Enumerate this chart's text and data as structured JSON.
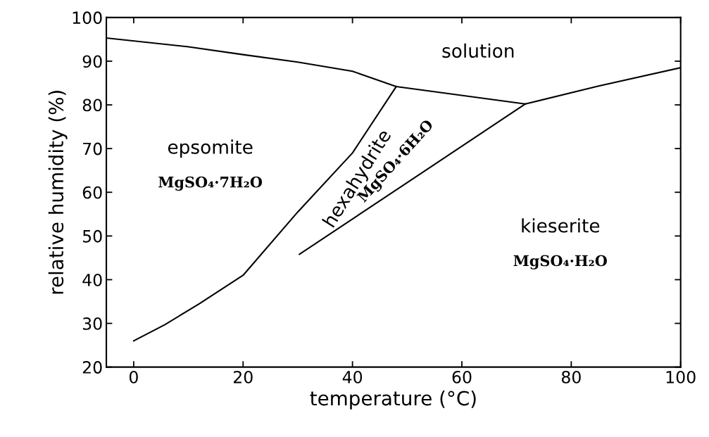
{
  "chart_data": {
    "type": "line",
    "xlabel": "temperature (°C)",
    "ylabel": "relative humidity (%)",
    "xlim": [
      -5,
      100
    ],
    "ylim": [
      20,
      100
    ],
    "xticks": [
      0,
      20,
      40,
      60,
      80,
      100
    ],
    "yticks": [
      20,
      30,
      40,
      50,
      60,
      70,
      80,
      90,
      100
    ],
    "grid": false,
    "marker": "none",
    "line_style": "solid",
    "series": [
      {
        "color": "#000000",
        "x": [
          -5,
          10,
          20,
          30,
          40,
          48,
          71.6,
          85,
          100
        ],
        "values": [
          95.3,
          93.3,
          91.5,
          89.8,
          87.7,
          84.2,
          80.2,
          84.3,
          88.5
        ]
      },
      {
        "color": "#000000",
        "x": [
          0,
          5.7,
          12,
          20,
          30,
          40,
          48
        ],
        "values": [
          26,
          29.7,
          34.5,
          41,
          55.5,
          69,
          84.2
        ]
      },
      {
        "color": "#000000",
        "x": [
          30.3,
          71.6
        ],
        "values": [
          45.8,
          80.2
        ]
      }
    ],
    "annotations": [
      "solution",
      "epsomite",
      "MgSO₄·7H₂O",
      "hexahydrite",
      "MgSO₄·6H₂O",
      "kieserite",
      "MgSO₄·H₂O"
    ]
  }
}
